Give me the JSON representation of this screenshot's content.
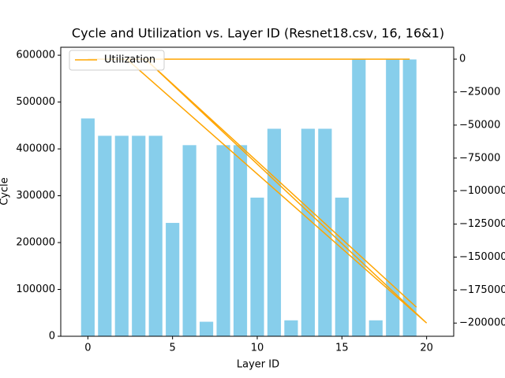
{
  "chart_data": {
    "type": "bar",
    "title": "Cycle and Utilization vs. Layer ID (Resnet18.csv, 16, 16&1)",
    "x_label": "Layer ID",
    "y_label": "Cycle",
    "categories": [
      0,
      1,
      2,
      3,
      4,
      5,
      6,
      7,
      8,
      9,
      10,
      11,
      12,
      13,
      14,
      15,
      16,
      17,
      18,
      19
    ],
    "series": [
      {
        "name": "Cycle",
        "color": "#87ceeb",
        "values": [
          465000,
          428000,
          428000,
          428000,
          428000,
          242000,
          408000,
          31000,
          408000,
          408000,
          296000,
          443000,
          34000,
          443000,
          443000,
          296000,
          591000,
          34000,
          591000,
          591000
        ]
      },
      {
        "name": "Utilization",
        "color": "#ffa500",
        "axis": "y2",
        "type": "line",
        "x": [
          0,
          19,
          2.3,
          20,
          3.4,
          19.4
        ],
        "values": [
          0,
          0,
          0,
          -200000,
          0,
          -188000
        ]
      }
    ],
    "legend": "upper left",
    "xlim": [
      -1.6,
      21.6
    ],
    "xticks": [
      0,
      5,
      10,
      15,
      20
    ],
    "ylim": [
      0,
      617000
    ],
    "yticks": [
      0,
      100000,
      200000,
      300000,
      400000,
      500000,
      600000
    ],
    "y2lim": [
      -210000,
      9000
    ],
    "y2ticks": [
      {
        "value": 0,
        "label": "0"
      },
      {
        "value": -25000,
        "label": "−25000"
      },
      {
        "value": -50000,
        "label": "−50000"
      },
      {
        "value": -75000,
        "label": "−75000"
      },
      {
        "value": -100000,
        "label": "−100000"
      },
      {
        "value": -125000,
        "label": "−125000"
      },
      {
        "value": -150000,
        "label": "−150000"
      },
      {
        "value": -175000,
        "label": "−175000"
      },
      {
        "value": -200000,
        "label": "−200000"
      }
    ]
  }
}
